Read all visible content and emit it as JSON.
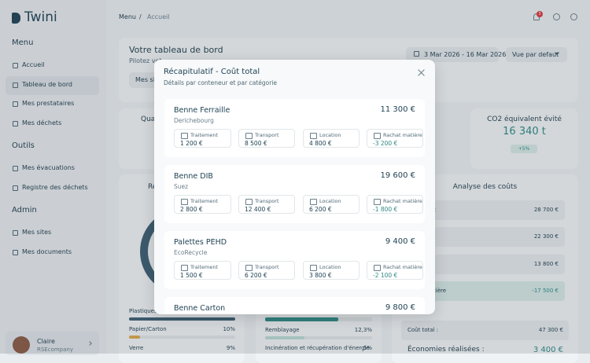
{
  "sidebar": {
    "logo": "Twini",
    "sections": [
      {
        "title": "Menu",
        "items": [
          "Accueil",
          "Tableau de bord",
          "Mes prestataires",
          "Mes déchets"
        ]
      },
      {
        "title": "Outils",
        "items": [
          "Mes évacuations",
          "Registre des déchets"
        ]
      },
      {
        "title": "Admin",
        "items": [
          "Mes sites",
          "Mes documents"
        ]
      }
    ],
    "user": {
      "name": "Claire",
      "company": "RSEcompany"
    }
  },
  "topbar": {
    "breadcrumb": [
      "Menu",
      "/",
      "Accueil"
    ],
    "notifications": "3"
  },
  "dashboard": {
    "title": "Votre tableau de bord",
    "subtitle": "Pilotez vot",
    "sites_button": "Mes sit",
    "date_range": "3 Mar 2026 - 16 Mar 2026",
    "view_select": "Vue par defaut",
    "card_left": "Qua",
    "card_right": {
      "title": "CO2 équivalent évité",
      "value": "16 340 t",
      "change": "+5%"
    },
    "left_panel": {
      "title": "Re",
      "rows": [
        {
          "label": "Plastiques"
        },
        {
          "label": "Papier/Carton",
          "value": "10%"
        },
        {
          "label": "Verre",
          "value": "9%"
        }
      ]
    },
    "middle_panel": {
      "rows": [
        {
          "label": "Remblayage",
          "value": "12,3%"
        },
        {
          "label": "Incinération et récupération d'énergie",
          "value": "5%"
        }
      ]
    },
    "costs": {
      "title": "Analyse des coûts",
      "rows": [
        {
          "label": "t",
          "value": "28 700 €"
        },
        {
          "value": "22 300 €"
        },
        {
          "value": "13 800 €"
        },
        {
          "label": "tière",
          "value": "-17 500 €"
        }
      ],
      "totals": [
        {
          "label": "Coût total :",
          "value": "47 300 €"
        },
        {
          "label": "Économies réalisées :",
          "value": "3 400 €"
        }
      ]
    }
  },
  "modal": {
    "title": "Récapitulatif - Coût total",
    "subtitle": "Détails par conteneur et par catégorie",
    "containers": [
      {
        "name": "Benne Ferraille",
        "provider": "Derichebourg",
        "total": "11 300 €",
        "items": [
          {
            "label": "Traitement",
            "value": "1 200 €"
          },
          {
            "label": "Transport",
            "value": "8 500 €"
          },
          {
            "label": "Location",
            "value": "4 800 €"
          },
          {
            "label": "Rachat matière",
            "value": "-3 200 €"
          }
        ]
      },
      {
        "name": "Benne DIB",
        "provider": "Suez",
        "total": "19 600 €",
        "items": [
          {
            "label": "Traitement",
            "value": "2 800 €"
          },
          {
            "label": "Transport",
            "value": "12 400 €"
          },
          {
            "label": "Location",
            "value": "6 200 €"
          },
          {
            "label": "Rachat matière",
            "value": "-1 800 €"
          }
        ]
      },
      {
        "name": "Palettes PEHD",
        "provider": "EcoRecycle",
        "total": "9 400 €",
        "items": [
          {
            "label": "Traitement",
            "value": "1 500 €"
          },
          {
            "label": "Transport",
            "value": "6 200 €"
          },
          {
            "label": "Location",
            "value": "3 800 €"
          },
          {
            "label": "Rachat matière",
            "value": "-2 100 €"
          }
        ]
      },
      {
        "name": "Benne Carton",
        "total": "9 800 €"
      }
    ]
  }
}
